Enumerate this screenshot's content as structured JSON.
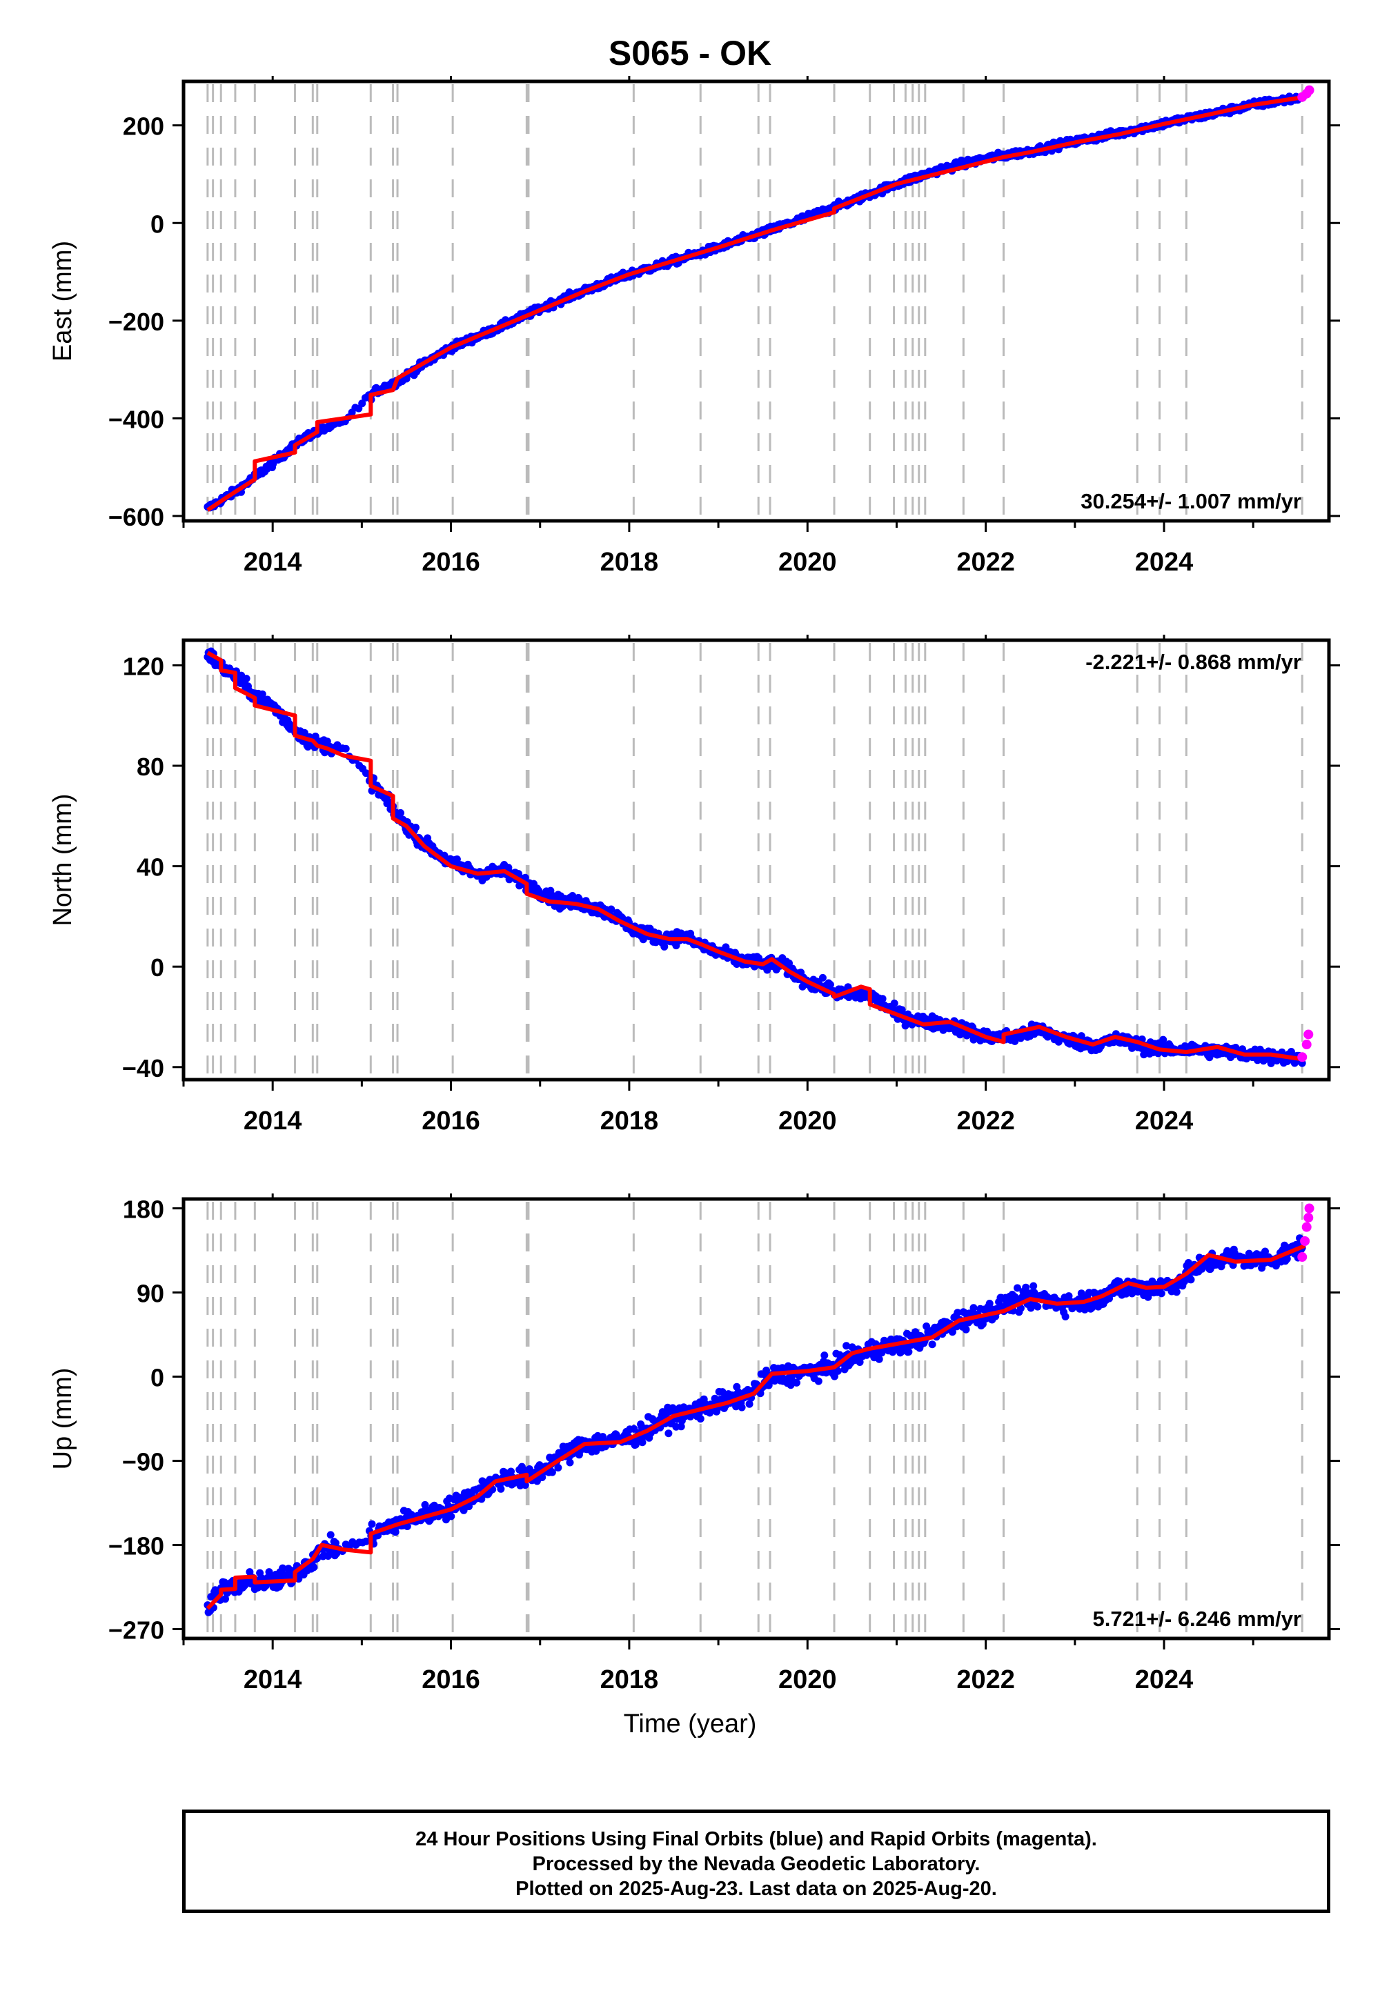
{
  "title": "S065 - OK",
  "xlabel": "Time (year)",
  "footer": {
    "line1": "24 Hour Positions Using Final Orbits (blue) and Rapid Orbits (magenta).",
    "line2": "Processed by the Nevada Geodetic Laboratory.",
    "line3": "Plotted on 2025-Aug-23. Last data on 2025-Aug-20."
  },
  "colors": {
    "final": "#0000ff",
    "rapid": "#ff00ff",
    "model": "#ff0000",
    "steps": "#bbbbbb"
  },
  "chart_data": [
    {
      "type": "scatter",
      "ylabel": "East (mm)",
      "rate_label": "30.254+/- 1.007 mm/yr",
      "rate_position": "bottom-right",
      "xlim": [
        2013.0,
        2025.85
      ],
      "ylim": [
        -610,
        290
      ],
      "yticks": [
        -600,
        -400,
        -200,
        0,
        200
      ],
      "xticks": [
        2014,
        2016,
        2018,
        2020,
        2022,
        2024
      ],
      "step_lines": [
        2013.27,
        2013.33,
        2013.42,
        2013.58,
        2013.8,
        2014.25,
        2014.45,
        2014.5,
        2015.1,
        2015.35,
        2015.4,
        2016.02,
        2016.85,
        2016.87,
        2018.05,
        2018.8,
        2019.45,
        2019.58,
        2020.3,
        2020.7,
        2020.97,
        2021.1,
        2021.18,
        2021.25,
        2021.32,
        2021.75,
        2022.2,
        2023.7,
        2023.95,
        2024.25,
        2025.55
      ],
      "model_line": {
        "x": [
          2013.27,
          2013.5,
          2013.8,
          2013.8,
          2014.25,
          2014.25,
          2014.5,
          2014.5,
          2015.1,
          2015.1,
          2015.35,
          2015.4,
          2016.0,
          2016.85,
          2017.5,
          2018.0,
          2019.0,
          2019.6,
          2020.3,
          2020.3,
          2021.0,
          2021.7,
          2022.2,
          2022.5,
          2023.0,
          2023.5,
          2024.0,
          2024.5,
          2025.0,
          2025.58
        ],
        "y": [
          -588,
          -560,
          -525,
          -488,
          -470,
          -455,
          -428,
          -408,
          -392,
          -352,
          -342,
          -318,
          -255,
          -190,
          -140,
          -105,
          -50,
          -15,
          22,
          30,
          80,
          112,
          135,
          145,
          165,
          182,
          203,
          222,
          242,
          258
        ]
      },
      "final_series": {
        "x": [
          2013.27,
          2013.4,
          2013.6,
          2013.8,
          2014.0,
          2014.2,
          2014.4,
          2014.6,
          2014.8,
          2015.15,
          2015.4,
          2015.7,
          2016.0,
          2016.4,
          2016.8,
          2017.2,
          2017.6,
          2018.0,
          2018.5,
          2019.0,
          2019.5,
          2020.0,
          2020.5,
          2021.0,
          2021.5,
          2022.0,
          2022.5,
          2023.0,
          2023.5,
          2024.0,
          2024.5,
          2025.0,
          2025.5
        ],
        "y": [
          -585,
          -570,
          -548,
          -520,
          -492,
          -462,
          -435,
          -420,
          -405,
          -345,
          -325,
          -288,
          -255,
          -225,
          -192,
          -160,
          -132,
          -105,
          -78,
          -50,
          -20,
          12,
          45,
          80,
          110,
          132,
          147,
          167,
          184,
          204,
          222,
          242,
          256
        ],
        "scatter_mm": 7
      },
      "rapid_series": {
        "x": [
          2025.55,
          2025.6,
          2025.63
        ],
        "y": [
          258,
          265,
          272
        ]
      }
    },
    {
      "type": "scatter",
      "ylabel": "North (mm)",
      "rate_label": "-2.221+/- 0.868 mm/yr",
      "rate_position": "top-right",
      "xlim": [
        2013.0,
        2025.85
      ],
      "ylim": [
        -45,
        130
      ],
      "yticks": [
        -40,
        0,
        40,
        80,
        120
      ],
      "xticks": [
        2014,
        2016,
        2018,
        2020,
        2022,
        2024
      ],
      "step_lines": [
        2013.27,
        2013.33,
        2013.42,
        2013.58,
        2013.8,
        2014.25,
        2014.45,
        2014.5,
        2015.1,
        2015.35,
        2015.4,
        2016.02,
        2016.85,
        2016.87,
        2018.05,
        2018.8,
        2019.45,
        2019.58,
        2020.3,
        2020.7,
        2020.97,
        2021.1,
        2021.18,
        2021.25,
        2021.32,
        2021.75,
        2022.2,
        2023.7,
        2023.95,
        2024.25,
        2025.55
      ],
      "model_line": {
        "x": [
          2013.27,
          2013.42,
          2013.42,
          2013.58,
          2013.58,
          2013.8,
          2013.8,
          2014.25,
          2014.25,
          2014.45,
          2014.5,
          2014.6,
          2014.8,
          2015.1,
          2015.1,
          2015.35,
          2015.35,
          2015.5,
          2015.7,
          2016.0,
          2016.3,
          2016.6,
          2016.85,
          2016.85,
          2017.1,
          2017.4,
          2017.65,
          2017.9,
          2018.2,
          2018.45,
          2018.65,
          2018.8,
          2019.0,
          2019.3,
          2019.5,
          2019.6,
          2019.8,
          2020.0,
          2020.3,
          2020.3,
          2020.6,
          2020.7,
          2020.7,
          2021.0,
          2021.3,
          2021.6,
          2021.8,
          2022.0,
          2022.2,
          2022.2,
          2022.6,
          2022.9,
          2023.2,
          2023.45,
          2023.7,
          2023.95,
          2024.25,
          2024.6,
          2024.9,
          2025.2,
          2025.58
        ],
        "y": [
          125,
          122,
          118,
          117,
          111,
          107,
          104,
          100,
          92,
          90,
          88,
          87,
          84,
          82,
          72,
          68,
          59,
          56,
          48,
          40,
          37,
          38,
          33,
          29,
          26,
          25,
          23,
          18,
          13,
          11,
          11,
          9,
          6,
          2,
          1,
          3,
          -2,
          -6,
          -11,
          -12,
          -8,
          -9,
          -15,
          -19,
          -23,
          -22,
          -25,
          -28,
          -30,
          -27,
          -24,
          -28,
          -31,
          -28,
          -30,
          -33,
          -34,
          -32,
          -35,
          -35,
          -37
        ]
      },
      "final_series": {
        "x": [
          2013.27,
          2013.4,
          2013.6,
          2013.8,
          2014.0,
          2014.2,
          2014.4,
          2014.6,
          2014.8,
          2015.15,
          2015.4,
          2015.7,
          2016.0,
          2016.3,
          2016.6,
          2016.9,
          2017.2,
          2017.5,
          2017.8,
          2018.1,
          2018.4,
          2018.6,
          2018.9,
          2019.2,
          2019.5,
          2019.7,
          2020.0,
          2020.4,
          2020.7,
          2021.0,
          2021.3,
          2021.6,
          2022.0,
          2022.3,
          2022.6,
          2022.9,
          2023.2,
          2023.5,
          2023.8,
          2024.1,
          2024.4,
          2024.7,
          2025.0,
          2025.3,
          2025.55
        ],
        "y": [
          125,
          120,
          115,
          108,
          104,
          96,
          90,
          88,
          86,
          72,
          60,
          49,
          41,
          37,
          38,
          32,
          26,
          25,
          21,
          14,
          11,
          12,
          7,
          3,
          1,
          1,
          -6,
          -11,
          -11,
          -19,
          -22,
          -23,
          -28,
          -28,
          -25,
          -29,
          -31,
          -29,
          -32,
          -33,
          -33,
          -34,
          -35,
          -36,
          -37
        ],
        "scatter_mm": 2.5
      },
      "rapid_series": {
        "x": [
          2025.55,
          2025.6,
          2025.62
        ],
        "y": [
          -36,
          -31,
          -27
        ]
      }
    },
    {
      "type": "scatter",
      "ylabel": "Up (mm)",
      "rate_label": "5.721+/- 6.246 mm/yr",
      "rate_position": "bottom-right",
      "xlim": [
        2013.0,
        2025.85
      ],
      "ylim": [
        -280,
        190
      ],
      "yticks": [
        -270,
        -180,
        -90,
        0,
        90,
        180
      ],
      "xticks": [
        2014,
        2016,
        2018,
        2020,
        2022,
        2024
      ],
      "step_lines": [
        2013.27,
        2013.33,
        2013.42,
        2013.58,
        2013.8,
        2014.25,
        2014.45,
        2014.5,
        2015.1,
        2015.35,
        2015.4,
        2016.02,
        2016.85,
        2016.87,
        2018.05,
        2018.8,
        2019.45,
        2019.58,
        2020.3,
        2020.7,
        2020.97,
        2021.1,
        2021.18,
        2021.25,
        2021.32,
        2021.75,
        2022.2,
        2023.7,
        2023.95,
        2024.25,
        2025.55
      ],
      "model_line": {
        "x": [
          2013.27,
          2013.42,
          2013.42,
          2013.58,
          2013.58,
          2013.8,
          2013.8,
          2014.25,
          2014.25,
          2014.45,
          2014.55,
          2014.8,
          2015.1,
          2015.1,
          2015.4,
          2015.7,
          2016.0,
          2016.3,
          2016.5,
          2016.85,
          2016.85,
          2017.2,
          2017.5,
          2017.9,
          2018.2,
          2018.5,
          2018.8,
          2019.1,
          2019.4,
          2019.6,
          2020.0,
          2020.3,
          2020.5,
          2020.7,
          2021.0,
          2021.4,
          2021.7,
          2022.2,
          2022.5,
          2022.8,
          2023.1,
          2023.3,
          2023.6,
          2023.8,
          2024.0,
          2024.25,
          2024.5,
          2024.8,
          2025.2,
          2025.58
        ],
        "y": [
          -248,
          -233,
          -228,
          -227,
          -215,
          -214,
          -220,
          -218,
          -209,
          -195,
          -180,
          -185,
          -188,
          -168,
          -158,
          -150,
          -142,
          -128,
          -112,
          -105,
          -112,
          -90,
          -72,
          -70,
          -58,
          -42,
          -35,
          -28,
          -18,
          3,
          6,
          10,
          25,
          30,
          35,
          42,
          60,
          70,
          83,
          78,
          80,
          86,
          100,
          95,
          96,
          110,
          130,
          123,
          125,
          140
        ]
      },
      "final_series": {
        "x": [
          2013.27,
          2013.4,
          2013.6,
          2013.8,
          2014.0,
          2014.2,
          2014.4,
          2014.6,
          2014.8,
          2015.15,
          2015.4,
          2015.7,
          2016.0,
          2016.3,
          2016.6,
          2016.9,
          2017.2,
          2017.5,
          2017.8,
          2018.1,
          2018.4,
          2018.7,
          2019.0,
          2019.3,
          2019.6,
          2019.9,
          2020.2,
          2020.5,
          2020.8,
          2021.1,
          2021.4,
          2021.7,
          2022.0,
          2022.3,
          2022.6,
          2022.9,
          2023.2,
          2023.5,
          2023.8,
          2024.1,
          2024.4,
          2024.7,
          2025.0,
          2025.3,
          2025.55
        ],
        "y": [
          -245,
          -230,
          -226,
          -218,
          -220,
          -213,
          -200,
          -182,
          -186,
          -168,
          -156,
          -148,
          -140,
          -124,
          -108,
          -108,
          -88,
          -72,
          -70,
          -62,
          -46,
          -38,
          -28,
          -22,
          0,
          4,
          8,
          20,
          30,
          35,
          45,
          60,
          68,
          80,
          84,
          78,
          82,
          95,
          95,
          98,
          118,
          128,
          124,
          128,
          140
        ],
        "scatter_mm": 10
      },
      "rapid_series": {
        "x": [
          2025.55,
          2025.58,
          2025.6,
          2025.62,
          2025.63
        ],
        "y": [
          128,
          145,
          160,
          170,
          180
        ]
      }
    }
  ]
}
